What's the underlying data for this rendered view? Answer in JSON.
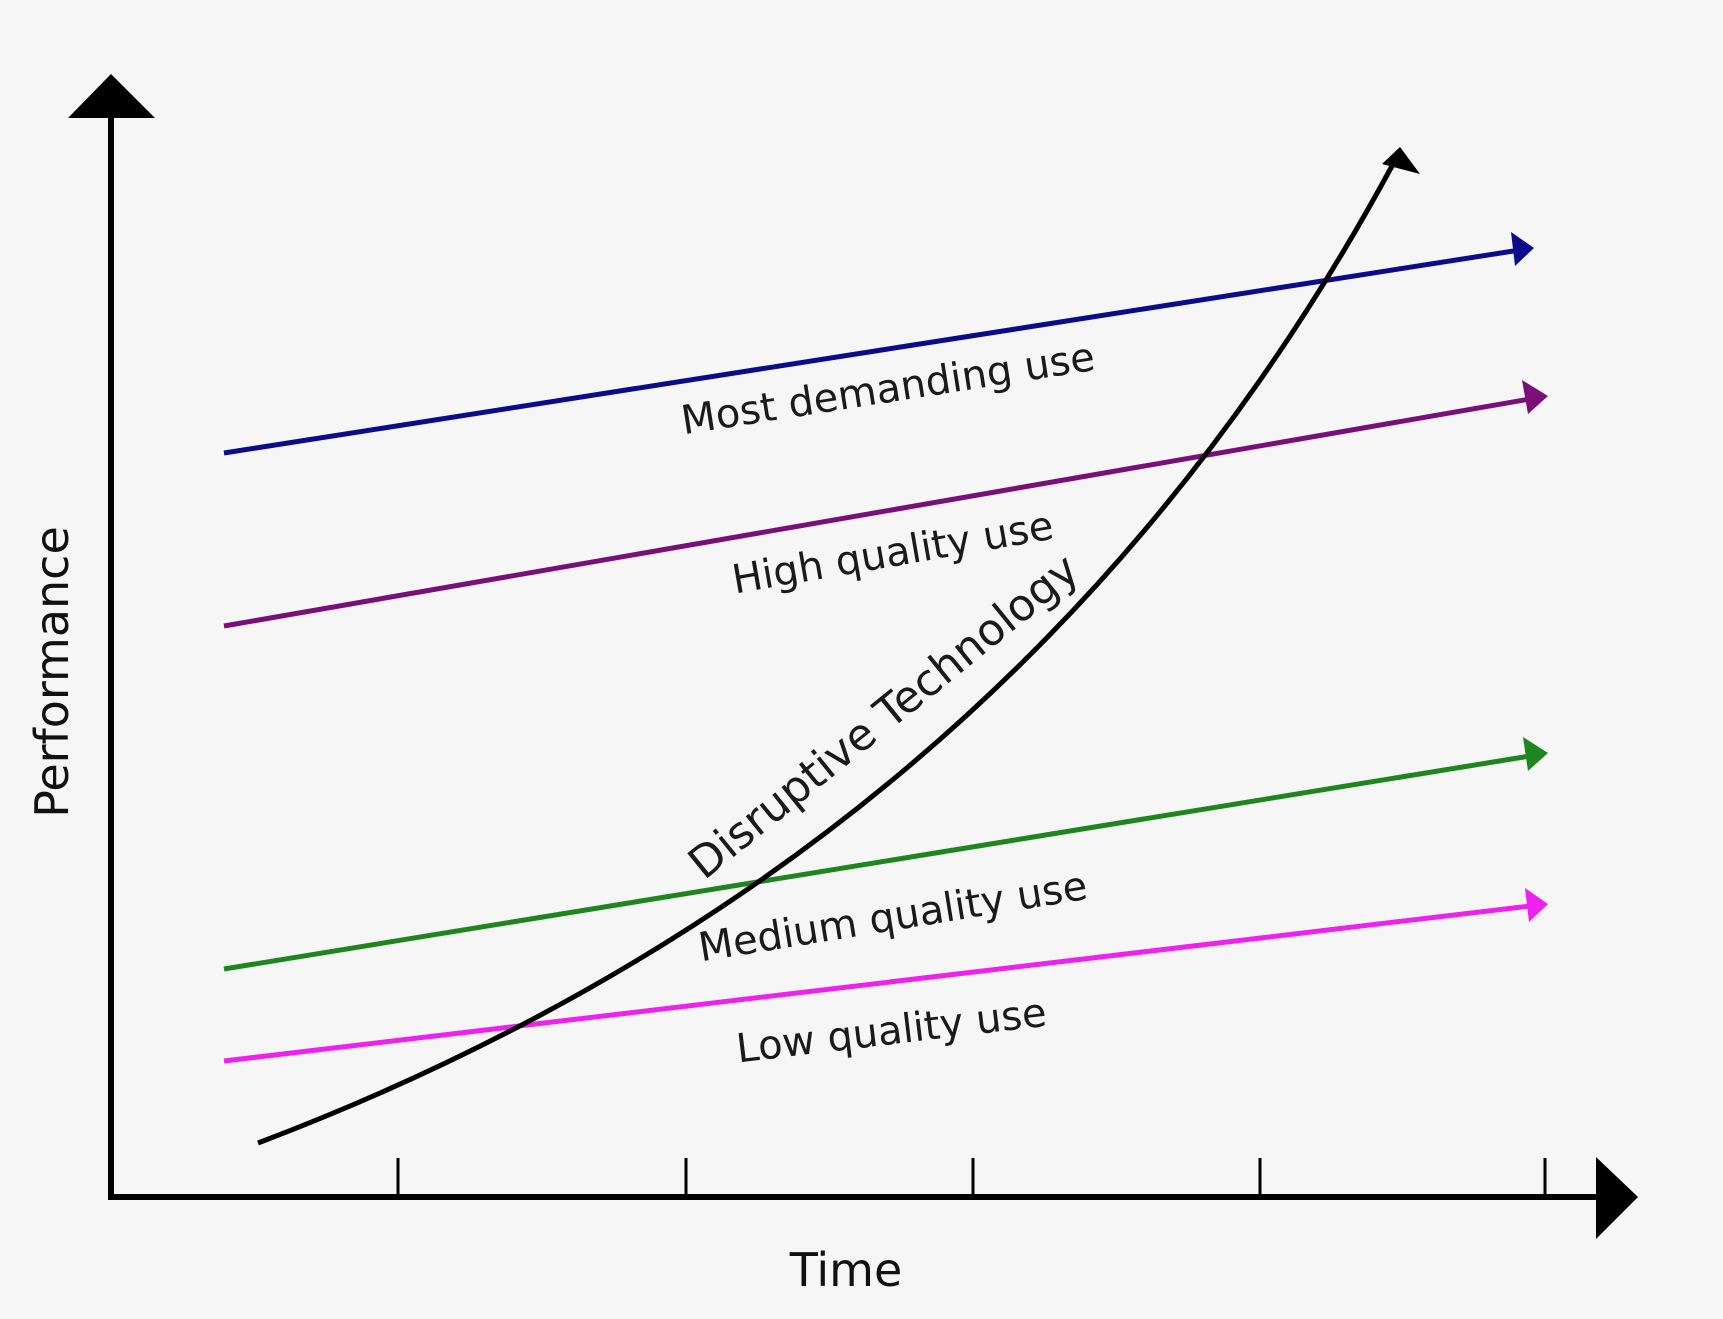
{
  "axes": {
    "x_label": "Time",
    "y_label": "Performance",
    "color": "#000000"
  },
  "disruptive_curve": {
    "label": "Disruptive Technology",
    "color": "#000000"
  },
  "demand_lines": [
    {
      "label": "Most demanding use",
      "color": "#0b0b8c"
    },
    {
      "label": "High quality use",
      "color": "#7a0f7a"
    },
    {
      "label": "Medium quality use",
      "color": "#1f861f"
    },
    {
      "label": "Low quality use",
      "color": "#ee22ee"
    }
  ],
  "background_color": "#f6f6f6"
}
